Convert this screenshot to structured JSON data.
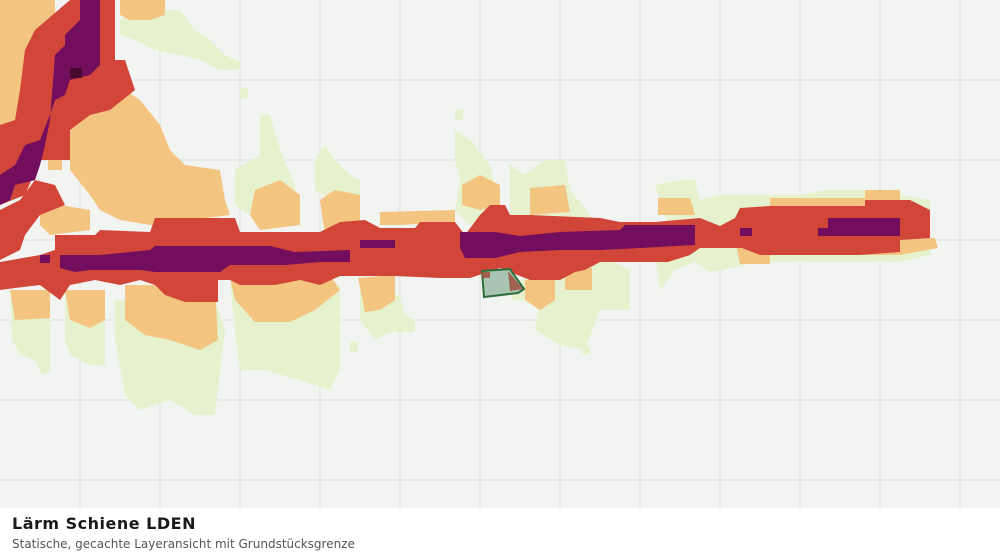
{
  "footer": {
    "title": "Lärm Schiene LDEN",
    "subtitle": "Statische, gecachte Layeransicht mit Grundstücksgrenze"
  }
}
